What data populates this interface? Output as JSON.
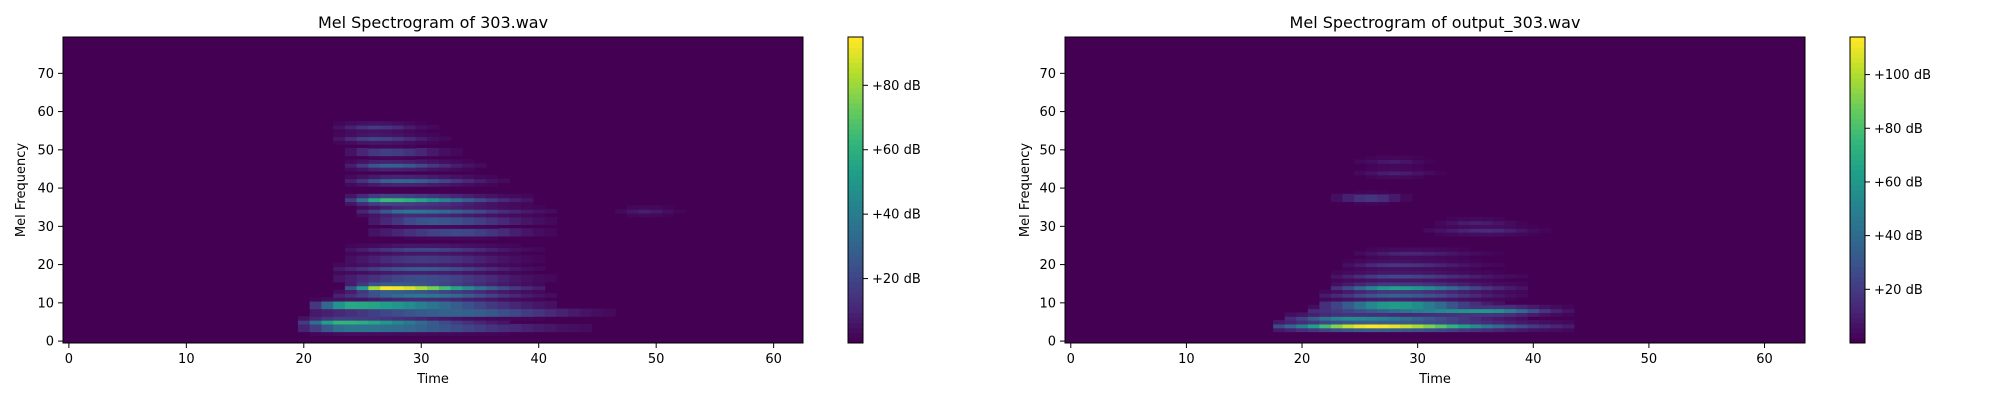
{
  "colors": {
    "colormap": "viridis",
    "low": "#440154",
    "high": "#fde725",
    "axis": "#000000"
  },
  "chart_data": [
    {
      "type": "heatmap",
      "title": "Mel Spectrogram of 303.wav",
      "xlabel": "Time",
      "ylabel": "Mel Frequency",
      "xlim": [
        -0.5,
        62.5
      ],
      "ylim": [
        -0.5,
        79.5
      ],
      "x_ticks": [
        0,
        10,
        20,
        30,
        40,
        50,
        60
      ],
      "y_ticks": [
        0,
        10,
        20,
        30,
        40,
        50,
        60,
        70
      ],
      "colorbar": {
        "min": 0,
        "max": 95,
        "ticks": [
          20,
          40,
          60,
          80
        ],
        "tick_labels": [
          "+20 dB",
          "+40 dB",
          "+60 dB",
          "+80 dB"
        ]
      },
      "frames": 63,
      "mel_bins": 80,
      "background_db": 0,
      "harmonics": [
        {
          "bin": 3.5,
          "t_start": 21,
          "t_end": 43,
          "peak_db": 50,
          "peak_t": 24
        },
        {
          "bin": 5,
          "t_start": 21,
          "t_end": 36,
          "peak_db": 62,
          "peak_t": 23
        },
        {
          "bin": 7.5,
          "t_start": 22,
          "t_end": 45,
          "peak_db": 40,
          "peak_t": 33
        },
        {
          "bin": 9.5,
          "t_start": 22,
          "t_end": 40,
          "peak_db": 78,
          "peak_t": 24
        },
        {
          "bin": 12,
          "t_start": 24,
          "t_end": 40,
          "peak_db": 38,
          "peak_t": 30
        },
        {
          "bin": 14,
          "t_start": 25,
          "t_end": 39,
          "peak_db": 95,
          "peak_t": 27
        },
        {
          "bin": 16.5,
          "t_start": 24,
          "t_end": 40,
          "peak_db": 30,
          "peak_t": 30
        },
        {
          "bin": 19,
          "t_start": 24,
          "t_end": 39,
          "peak_db": 28,
          "peak_t": 30
        },
        {
          "bin": 21.5,
          "t_start": 25,
          "t_end": 39,
          "peak_db": 22,
          "peak_t": 30
        },
        {
          "bin": 24,
          "t_start": 25,
          "t_end": 39,
          "peak_db": 20,
          "peak_t": 30
        },
        {
          "bin": 28.5,
          "t_start": 27,
          "t_end": 40,
          "peak_db": 28,
          "peak_t": 33
        },
        {
          "bin": 31.5,
          "t_start": 27,
          "t_end": 40,
          "peak_db": 35,
          "peak_t": 31
        },
        {
          "bin": 34,
          "t_start": 26,
          "t_end": 40,
          "peak_db": 38,
          "peak_t": 29
        },
        {
          "bin": 37,
          "t_start": 25,
          "t_end": 38,
          "peak_db": 65,
          "peak_t": 27
        },
        {
          "bin": 42,
          "t_start": 25,
          "t_end": 36,
          "peak_db": 32,
          "peak_t": 28
        },
        {
          "bin": 46,
          "t_start": 25,
          "t_end": 34,
          "peak_db": 30,
          "peak_t": 27
        },
        {
          "bin": 49.5,
          "t_start": 25,
          "t_end": 32,
          "peak_db": 24,
          "peak_t": 27
        },
        {
          "bin": 53,
          "t_start": 24,
          "t_end": 31,
          "peak_db": 20,
          "peak_t": 26
        },
        {
          "bin": 56,
          "t_start": 24,
          "t_end": 30,
          "peak_db": 16,
          "peak_t": 26
        },
        {
          "bin": 34,
          "t_start": 48,
          "t_end": 51,
          "peak_db": 8,
          "peak_t": 49
        }
      ]
    },
    {
      "type": "heatmap",
      "title": "Mel Spectrogram of output_303.wav",
      "xlabel": "Time",
      "ylabel": "Mel Frequency",
      "xlim": [
        -0.5,
        63.5
      ],
      "ylim": [
        -0.5,
        79.5
      ],
      "x_ticks": [
        0,
        10,
        20,
        30,
        40,
        50,
        60
      ],
      "y_ticks": [
        0,
        10,
        20,
        30,
        40,
        50,
        60,
        70
      ],
      "colorbar": {
        "min": 0,
        "max": 114,
        "ticks": [
          20,
          40,
          60,
          80,
          100
        ],
        "tick_labels": [
          "+20 dB",
          "+40 dB",
          "+60 dB",
          "+80 dB",
          "+100 dB"
        ]
      },
      "frames": 64,
      "mel_bins": 80,
      "background_db": 0,
      "harmonics": [
        {
          "bin": 4,
          "t_start": 19,
          "t_end": 42,
          "peak_db": 114,
          "peak_t": 26
        },
        {
          "bin": 6,
          "t_start": 20,
          "t_end": 38,
          "peak_db": 55,
          "peak_t": 24
        },
        {
          "bin": 8,
          "t_start": 22,
          "t_end": 42,
          "peak_db": 60,
          "peak_t": 36
        },
        {
          "bin": 9.5,
          "t_start": 23,
          "t_end": 36,
          "peak_db": 85,
          "peak_t": 28
        },
        {
          "bin": 12,
          "t_start": 23,
          "t_end": 38,
          "peak_db": 35,
          "peak_t": 28
        },
        {
          "bin": 14,
          "t_start": 24,
          "t_end": 38,
          "peak_db": 65,
          "peak_t": 28
        },
        {
          "bin": 17,
          "t_start": 24,
          "t_end": 38,
          "peak_db": 25,
          "peak_t": 28
        },
        {
          "bin": 20,
          "t_start": 25,
          "t_end": 36,
          "peak_db": 18,
          "peak_t": 28
        },
        {
          "bin": 23,
          "t_start": 26,
          "t_end": 36,
          "peak_db": 12,
          "peak_t": 29
        },
        {
          "bin": 29,
          "t_start": 32,
          "t_end": 40,
          "peak_db": 14,
          "peak_t": 36
        },
        {
          "bin": 31,
          "t_start": 33,
          "t_end": 38,
          "peak_db": 10,
          "peak_t": 35
        },
        {
          "bin": 37.5,
          "t_start": 24,
          "t_end": 28,
          "peak_db": 24,
          "peak_t": 26
        },
        {
          "bin": 44,
          "t_start": 26,
          "t_end": 31,
          "peak_db": 10,
          "peak_t": 28
        },
        {
          "bin": 47,
          "t_start": 26,
          "t_end": 30,
          "peak_db": 8,
          "peak_t": 28
        }
      ]
    }
  ]
}
